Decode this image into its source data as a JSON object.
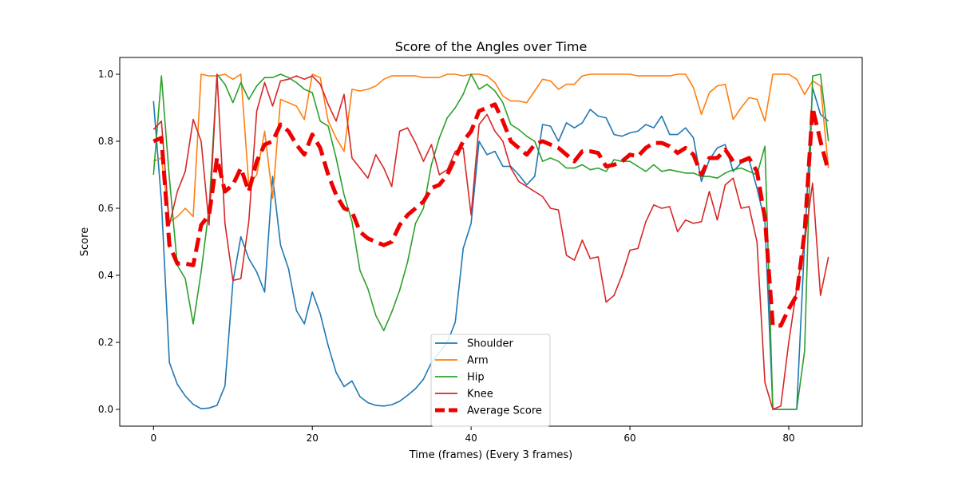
{
  "chart_data": {
    "type": "line",
    "title": "Score of the Angles over Time",
    "xlabel": "Time (frames) (Every 3 frames)",
    "ylabel": "Score",
    "xlim": [
      -4.25,
      89.25
    ],
    "ylim": [
      -0.05,
      1.05
    ],
    "xticks": [
      0,
      20,
      40,
      60,
      80
    ],
    "yticks": [
      0.0,
      0.2,
      0.4,
      0.6,
      0.8,
      1.0
    ],
    "xtick_labels": [
      "0",
      "20",
      "40",
      "60",
      "80"
    ],
    "ytick_labels": [
      "0.0",
      "0.2",
      "0.4",
      "0.6",
      "0.8",
      "1.0"
    ],
    "grid": false,
    "legend_position": "bottom-center",
    "series": [
      {
        "name": "Shoulder",
        "color": "#1f77b4",
        "linestyle": "solid",
        "x": [
          0,
          1,
          2,
          3,
          4,
          5,
          6,
          7,
          8,
          9,
          10,
          11,
          12,
          13,
          14,
          15,
          16,
          17,
          18,
          19,
          20,
          21,
          22,
          23,
          24,
          25,
          26,
          27,
          28,
          29,
          30,
          31,
          32,
          33,
          34,
          35,
          36,
          37,
          38,
          39,
          40,
          41,
          42,
          43,
          44,
          45,
          46,
          47,
          48,
          49,
          50,
          51,
          52,
          53,
          54,
          55,
          56,
          57,
          58,
          59,
          60,
          61,
          62,
          63,
          64,
          65,
          66,
          67,
          68,
          69,
          70,
          71,
          72,
          73,
          74,
          75,
          76,
          77,
          78,
          79,
          80,
          81,
          82,
          83,
          84,
          85
        ],
        "y": [
          0.92,
          0.62,
          0.14,
          0.075,
          0.04,
          0.015,
          0.002,
          0.004,
          0.012,
          0.07,
          0.38,
          0.515,
          0.45,
          0.41,
          0.35,
          0.695,
          0.49,
          0.42,
          0.295,
          0.255,
          0.35,
          0.285,
          0.19,
          0.11,
          0.068,
          0.085,
          0.038,
          0.02,
          0.012,
          0.01,
          0.014,
          0.024,
          0.042,
          0.062,
          0.09,
          0.14,
          0.17,
          0.2,
          0.26,
          0.48,
          0.555,
          0.8,
          0.76,
          0.77,
          0.725,
          0.725,
          0.7,
          0.67,
          0.695,
          0.85,
          0.845,
          0.8,
          0.855,
          0.84,
          0.855,
          0.895,
          0.875,
          0.87,
          0.82,
          0.815,
          0.825,
          0.83,
          0.85,
          0.84,
          0.875,
          0.82,
          0.82,
          0.84,
          0.81,
          0.68,
          0.745,
          0.78,
          0.79,
          0.71,
          0.735,
          0.745,
          0.66,
          0.56,
          0.0,
          0.0,
          0.0,
          0.0,
          0.5,
          0.96,
          0.88,
          0.86
        ]
      },
      {
        "name": "Arm",
        "color": "#ff7f0e",
        "linestyle": "solid",
        "x": [
          0,
          1,
          2,
          3,
          4,
          5,
          6,
          7,
          8,
          9,
          10,
          11,
          12,
          13,
          14,
          15,
          16,
          17,
          18,
          19,
          20,
          21,
          22,
          23,
          24,
          25,
          26,
          27,
          28,
          29,
          30,
          31,
          32,
          33,
          34,
          35,
          36,
          37,
          38,
          39,
          40,
          41,
          42,
          43,
          44,
          45,
          46,
          47,
          48,
          49,
          50,
          51,
          52,
          53,
          54,
          55,
          56,
          57,
          58,
          59,
          60,
          61,
          62,
          63,
          64,
          65,
          66,
          67,
          68,
          69,
          70,
          71,
          72,
          73,
          74,
          75,
          76,
          77,
          78,
          79,
          80,
          81,
          82,
          83,
          84,
          85
        ],
        "y": [
          0.74,
          0.75,
          0.56,
          0.575,
          0.6,
          0.575,
          1.0,
          0.995,
          0.995,
          1.0,
          0.985,
          1.0,
          0.67,
          0.7,
          0.83,
          0.63,
          0.925,
          0.915,
          0.905,
          0.865,
          1.0,
          0.99,
          0.86,
          0.81,
          0.77,
          0.955,
          0.95,
          0.955,
          0.965,
          0.985,
          0.995,
          0.995,
          0.995,
          0.995,
          0.99,
          0.99,
          0.99,
          1.0,
          1.0,
          0.995,
          1.0,
          1.0,
          0.995,
          0.975,
          0.935,
          0.92,
          0.92,
          0.915,
          0.95,
          0.985,
          0.98,
          0.955,
          0.97,
          0.97,
          0.995,
          1.0,
          1.0,
          1.0,
          1.0,
          1.0,
          1.0,
          0.995,
          0.995,
          0.995,
          0.995,
          0.995,
          1.0,
          1.0,
          0.96,
          0.88,
          0.945,
          0.965,
          0.97,
          0.865,
          0.9,
          0.93,
          0.925,
          0.86,
          1.0,
          1.0,
          1.0,
          0.985,
          0.94,
          0.98,
          0.965,
          0.72
        ]
      },
      {
        "name": "Hip",
        "color": "#2ca02c",
        "linestyle": "solid",
        "x": [
          0,
          1,
          2,
          3,
          4,
          5,
          6,
          7,
          8,
          9,
          10,
          11,
          12,
          13,
          14,
          15,
          16,
          17,
          18,
          19,
          20,
          21,
          22,
          23,
          24,
          25,
          26,
          27,
          28,
          29,
          30,
          31,
          32,
          33,
          34,
          35,
          36,
          37,
          38,
          39,
          40,
          41,
          42,
          43,
          44,
          45,
          46,
          47,
          48,
          49,
          50,
          51,
          52,
          53,
          54,
          55,
          56,
          57,
          58,
          59,
          60,
          61,
          62,
          63,
          64,
          65,
          66,
          67,
          68,
          69,
          70,
          71,
          72,
          73,
          74,
          75,
          76,
          77,
          78,
          79,
          80,
          81,
          82,
          83,
          84,
          85
        ],
        "y": [
          0.7,
          0.995,
          0.69,
          0.43,
          0.39,
          0.255,
          0.41,
          0.6,
          1.0,
          0.97,
          0.915,
          0.975,
          0.925,
          0.965,
          0.99,
          0.99,
          1.0,
          0.99,
          0.975,
          0.955,
          0.945,
          0.86,
          0.845,
          0.75,
          0.64,
          0.56,
          0.415,
          0.36,
          0.28,
          0.235,
          0.29,
          0.355,
          0.44,
          0.555,
          0.6,
          0.73,
          0.81,
          0.87,
          0.9,
          0.94,
          1.0,
          0.955,
          0.97,
          0.95,
          0.915,
          0.85,
          0.835,
          0.815,
          0.8,
          0.74,
          0.75,
          0.74,
          0.72,
          0.72,
          0.73,
          0.715,
          0.72,
          0.71,
          0.745,
          0.74,
          0.74,
          0.725,
          0.71,
          0.73,
          0.71,
          0.715,
          0.71,
          0.705,
          0.705,
          0.695,
          0.695,
          0.69,
          0.705,
          0.715,
          0.72,
          0.71,
          0.7,
          0.785,
          0.0,
          0.0,
          0.0,
          0.0,
          0.175,
          0.995,
          1.0,
          0.8
        ]
      },
      {
        "name": "Knee",
        "color": "#d62728",
        "linestyle": "solid",
        "x": [
          0,
          1,
          2,
          3,
          4,
          5,
          6,
          7,
          8,
          9,
          10,
          11,
          12,
          13,
          14,
          15,
          16,
          17,
          18,
          19,
          20,
          21,
          22,
          23,
          24,
          25,
          26,
          27,
          28,
          29,
          30,
          31,
          32,
          33,
          34,
          35,
          36,
          37,
          38,
          39,
          40,
          41,
          42,
          43,
          44,
          45,
          46,
          47,
          48,
          49,
          50,
          51,
          52,
          53,
          54,
          55,
          56,
          57,
          58,
          59,
          60,
          61,
          62,
          63,
          64,
          65,
          66,
          67,
          68,
          69,
          70,
          71,
          72,
          73,
          74,
          75,
          76,
          77,
          78,
          79,
          80,
          81,
          82,
          83,
          84,
          85
        ],
        "y": [
          0.835,
          0.86,
          0.55,
          0.65,
          0.71,
          0.865,
          0.8,
          0.55,
          1.0,
          0.555,
          0.385,
          0.39,
          0.56,
          0.89,
          0.975,
          0.905,
          0.98,
          0.985,
          0.995,
          0.985,
          0.995,
          0.97,
          0.91,
          0.86,
          0.94,
          0.75,
          0.72,
          0.69,
          0.76,
          0.72,
          0.665,
          0.83,
          0.84,
          0.795,
          0.74,
          0.79,
          0.7,
          0.715,
          0.77,
          0.78,
          0.58,
          0.85,
          0.88,
          0.83,
          0.8,
          0.72,
          0.68,
          0.665,
          0.65,
          0.635,
          0.6,
          0.595,
          0.46,
          0.445,
          0.505,
          0.45,
          0.455,
          0.32,
          0.34,
          0.4,
          0.475,
          0.48,
          0.56,
          0.61,
          0.6,
          0.605,
          0.53,
          0.565,
          0.555,
          0.56,
          0.65,
          0.565,
          0.67,
          0.69,
          0.6,
          0.605,
          0.5,
          0.08,
          0.0,
          0.01,
          0.2,
          0.36,
          0.5,
          0.675,
          0.34,
          0.455
        ]
      },
      {
        "name": "Average Score",
        "color": "#ee0000",
        "linestyle": "dashed",
        "x": [
          0,
          1,
          2,
          3,
          4,
          5,
          6,
          7,
          8,
          9,
          10,
          11,
          12,
          13,
          14,
          15,
          16,
          17,
          18,
          19,
          20,
          21,
          22,
          23,
          24,
          25,
          26,
          27,
          28,
          29,
          30,
          31,
          32,
          33,
          34,
          35,
          36,
          37,
          38,
          39,
          40,
          41,
          42,
          43,
          44,
          45,
          46,
          47,
          48,
          49,
          50,
          51,
          52,
          53,
          54,
          55,
          56,
          57,
          58,
          59,
          60,
          61,
          62,
          63,
          64,
          65,
          66,
          67,
          68,
          69,
          70,
          71,
          72,
          73,
          74,
          75,
          76,
          77,
          78,
          79,
          80,
          81,
          82,
          83,
          84,
          85
        ],
        "y": [
          0.8,
          0.81,
          0.49,
          0.435,
          0.435,
          0.43,
          0.55,
          0.58,
          0.75,
          0.65,
          0.67,
          0.72,
          0.65,
          0.74,
          0.79,
          0.8,
          0.85,
          0.83,
          0.79,
          0.76,
          0.82,
          0.78,
          0.7,
          0.64,
          0.6,
          0.59,
          0.53,
          0.51,
          0.5,
          0.49,
          0.5,
          0.55,
          0.58,
          0.6,
          0.62,
          0.66,
          0.67,
          0.7,
          0.75,
          0.8,
          0.83,
          0.89,
          0.9,
          0.91,
          0.86,
          0.8,
          0.78,
          0.76,
          0.79,
          0.8,
          0.79,
          0.78,
          0.76,
          0.74,
          0.77,
          0.77,
          0.765,
          0.725,
          0.73,
          0.74,
          0.76,
          0.755,
          0.78,
          0.795,
          0.795,
          0.785,
          0.765,
          0.78,
          0.76,
          0.7,
          0.75,
          0.75,
          0.775,
          0.74,
          0.74,
          0.75,
          0.71,
          0.57,
          0.25,
          0.25,
          0.3,
          0.34,
          0.53,
          0.9,
          0.8,
          0.71
        ]
      }
    ]
  }
}
